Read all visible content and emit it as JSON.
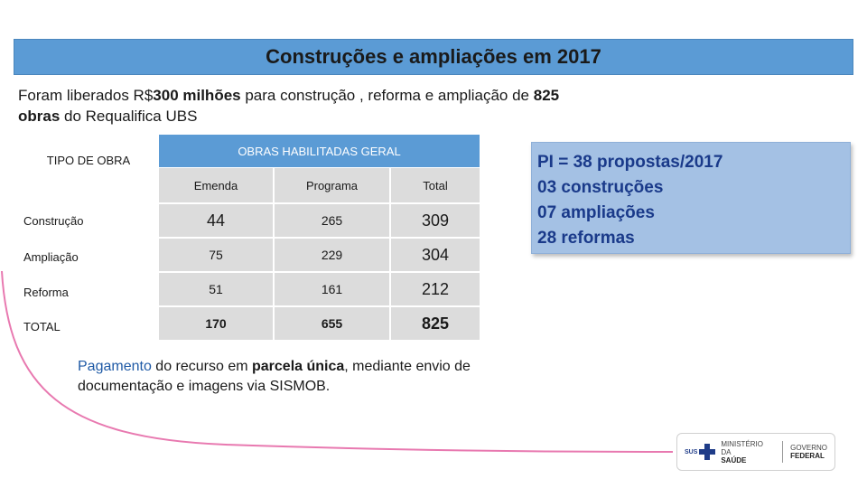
{
  "title": "Construções e ampliações em 2017",
  "intro": {
    "t1": "Foram liberados R$",
    "b1": "300 milhões",
    "t2": " para construção , reforma e ampliação de ",
    "b2": "825 obras",
    "t3": " do Requalifica UBS"
  },
  "table": {
    "tipo_header": "TIPO DE OBRA",
    "group_header": "OBRAS HABILITADAS GERAL",
    "columns": [
      "Emenda",
      "Programa",
      "Total"
    ],
    "rows": [
      {
        "label": "Construção",
        "emenda": "44",
        "programa": "265",
        "total": "309"
      },
      {
        "label": "Ampliação",
        "emenda": "75",
        "programa": "229",
        "total": "304"
      },
      {
        "label": "Reforma",
        "emenda": "51",
        "programa": "161",
        "total": "212"
      },
      {
        "label": "TOTAL",
        "emenda": "170",
        "programa": "655",
        "total": "825"
      }
    ]
  },
  "note": {
    "hl": "Pagamento",
    "t1": " do recurso em ",
    "b1": "parcela única",
    "t2": ", mediante envio de documentação e imagens via SISMOB."
  },
  "pi_box": {
    "lines": [
      "PI = 38 propostas/2017",
      "03 construções",
      "07 ampliações",
      "28 reformas"
    ]
  },
  "footer": {
    "sus": "SUS",
    "ministry_line1": "MINISTÉRIO DA",
    "ministry_line2": "SAÚDE",
    "gov_line1": "GOVERNO",
    "gov_line2": "FEDERAL"
  },
  "colors": {
    "accent": "#5b9bd5",
    "box": "#a4c1e4",
    "cell": "#dcdcdc",
    "curve": "#e05a9a"
  }
}
